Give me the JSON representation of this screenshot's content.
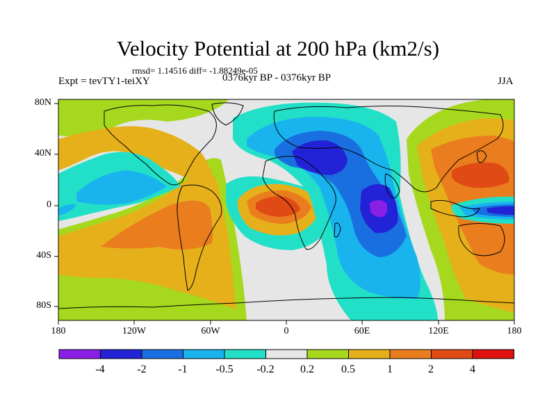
{
  "title": "Velocity Potential at 200 hPa (km2/s)",
  "stats_line": "rmsd= 1.14516 diff= -1.88249e-05",
  "experiment": "Expt = tevTY1-teiXY",
  "period": "0376kyr BP - 0376kyr BP",
  "season": "JJA",
  "axes": {
    "lat_labels": [
      "80N",
      "40N",
      "0",
      "40S",
      "80S"
    ],
    "lon_labels": [
      "180",
      "120W",
      "60W",
      "0",
      "60E",
      "120E",
      "180"
    ]
  },
  "colorbar": {
    "labels": [
      "-4",
      "-2",
      "-1",
      "-0.5",
      "-0.2",
      "0.2",
      "0.5",
      "1",
      "2",
      "4"
    ],
    "colors": [
      "#8a1fe6",
      "#2222d6",
      "#1a6fe0",
      "#19b4ee",
      "#22e0c8",
      "#e6e6e6",
      "#a6d81e",
      "#e6b01a",
      "#ea7d1e",
      "#e04a14",
      "#e01010"
    ]
  },
  "colors": {
    "ocean_background": "#e6e6e6",
    "coastline": "#000000"
  }
}
